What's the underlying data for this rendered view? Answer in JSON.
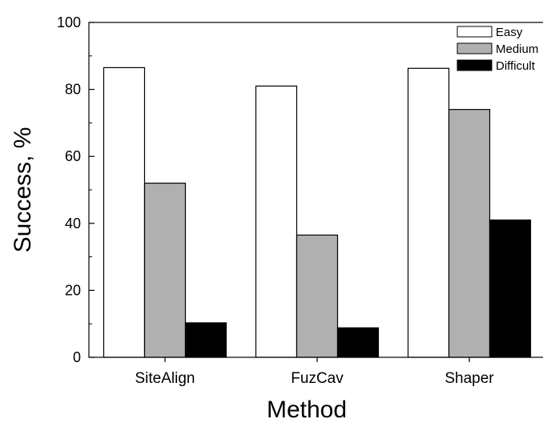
{
  "chart_data": {
    "type": "bar",
    "title": "",
    "xlabel": "Method",
    "ylabel": "Success, %",
    "ylim": [
      0,
      100
    ],
    "yticks": [
      0,
      20,
      40,
      60,
      80,
      100
    ],
    "categories": [
      "SiteAlign",
      "FuzCav",
      "Shaper"
    ],
    "series": [
      {
        "name": "Easy",
        "color": "#ffffff",
        "values": [
          86.5,
          81.0,
          86.3
        ]
      },
      {
        "name": "Medium",
        "color": "#b0b0b0",
        "values": [
          52.0,
          36.5,
          74.0
        ]
      },
      {
        "name": "Difficult",
        "color": "#000000",
        "values": [
          10.3,
          8.8,
          41.0
        ]
      }
    ],
    "grid": false,
    "legend": "top-right"
  }
}
